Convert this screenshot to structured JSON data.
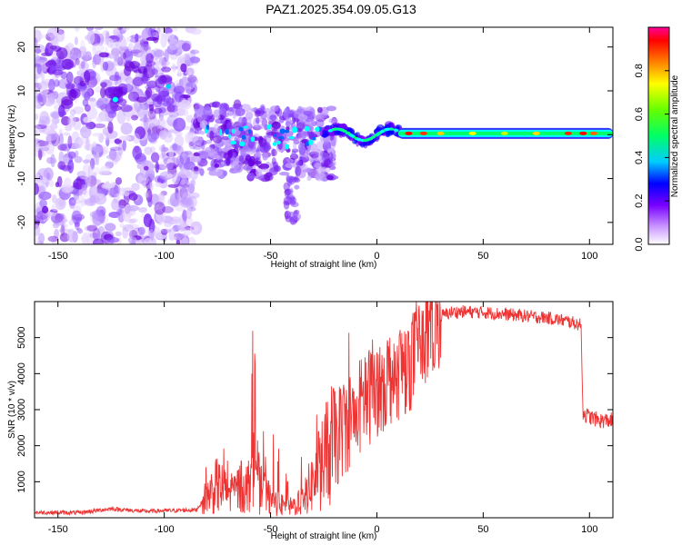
{
  "title": "PAZ1.2025.354.09.05.G13",
  "chart_data": [
    {
      "type": "heatmap",
      "xlabel": "Height of straight line (km)",
      "ylabel": "Frequency (Hz)",
      "xlim": [
        -161,
        111
      ],
      "ylim": [
        -25,
        24.5
      ],
      "xticks": [
        -150,
        -100,
        -50,
        0,
        50,
        100
      ],
      "yticks": [
        -20,
        -10,
        0,
        10,
        20
      ],
      "colorbar": {
        "label": "Normalized spectral amplitude",
        "range": [
          0,
          1
        ],
        "ticks": [
          0.0,
          0.2,
          0.4,
          0.6,
          0.8
        ]
      },
      "colormap": [
        "#ffffff",
        "#cc99ff",
        "#7700ff",
        "#0000ff",
        "#00ffff",
        "#00ff00",
        "#ffff00",
        "#ff8800",
        "#ff0000",
        "#ff0099"
      ],
      "ridge": [
        {
          "x": -80,
          "f": -2
        },
        {
          "x": -70,
          "f": -1
        },
        {
          "x": -55,
          "f": -3
        },
        {
          "x": -40,
          "f": -1
        },
        {
          "x": -30,
          "f": -2
        },
        {
          "x": -20,
          "f": 0
        },
        {
          "x": -10,
          "f": 1
        },
        {
          "x": 0,
          "f": 1
        },
        {
          "x": 10,
          "f": 1.5
        },
        {
          "x": 20,
          "f": 0
        },
        {
          "x": 50,
          "f": 0
        },
        {
          "x": 80,
          "f": 0.5
        },
        {
          "x": 111,
          "f": 0
        }
      ]
    },
    {
      "type": "line",
      "xlabel": "Height of straight line (km)",
      "ylabel": "SNR (10 * v/v)",
      "xlim": [
        -161,
        111
      ],
      "ylim": [
        0,
        6000
      ],
      "xticks": [
        -150,
        -100,
        -50,
        0,
        50,
        100
      ],
      "yticks": [
        1000,
        2000,
        3000,
        4000,
        5000
      ],
      "series": [
        {
          "color": "#ee3333",
          "points": [
            [
              -161,
              150
            ],
            [
              -140,
              140
            ],
            [
              -125,
              250
            ],
            [
              -110,
              180
            ],
            [
              -95,
              200
            ],
            [
              -85,
              220
            ],
            [
              -80,
              600
            ],
            [
              -75,
              900
            ],
            [
              -70,
              700
            ],
            [
              -60,
              900
            ],
            [
              -58,
              1800
            ],
            [
              -55,
              800
            ],
            [
              -50,
              500
            ],
            [
              -45,
              350
            ],
            [
              -40,
              300
            ],
            [
              -35,
              500
            ],
            [
              -30,
              1000
            ],
            [
              -25,
              1600
            ],
            [
              -20,
              2100
            ],
            [
              -15,
              2600
            ],
            [
              -10,
              2900
            ],
            [
              -5,
              3300
            ],
            [
              0,
              3600
            ],
            [
              5,
              3900
            ],
            [
              10,
              4100
            ],
            [
              15,
              4300
            ],
            [
              20,
              4700
            ],
            [
              25,
              5200
            ],
            [
              30,
              5600
            ],
            [
              35,
              5700
            ],
            [
              40,
              5720
            ],
            [
              50,
              5700
            ],
            [
              60,
              5650
            ],
            [
              70,
              5600
            ],
            [
              80,
              5550
            ],
            [
              90,
              5450
            ],
            [
              96,
              5350
            ],
            [
              97,
              2900
            ],
            [
              100,
              2800
            ],
            [
              105,
              2700
            ],
            [
              111,
              2700
            ]
          ]
        }
      ]
    }
  ]
}
